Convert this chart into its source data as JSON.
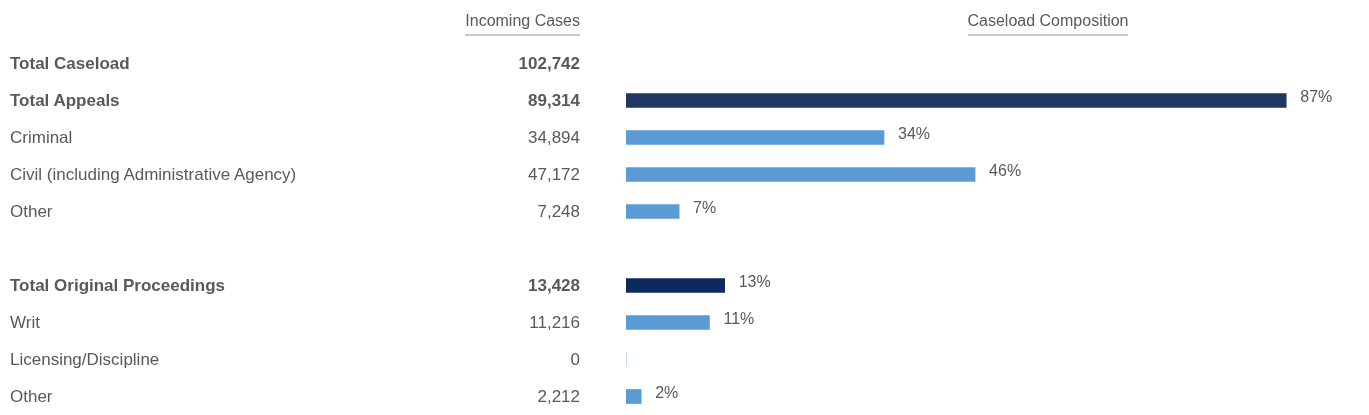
{
  "chart_data": [
    {
      "type": "other",
      "title": "Incoming Cases",
      "values": [
        102742,
        89314,
        34894,
        47172,
        7248,
        null,
        13428,
        11216,
        0,
        2212
      ],
      "value_labels": [
        "102,742",
        "89,314",
        "34,894",
        "47,172",
        "7,248",
        null,
        "13,428",
        "11,216",
        "0",
        "2,212"
      ]
    },
    {
      "type": "bar",
      "orientation": "horizontal",
      "title": "Caseload Composition",
      "categories": [
        "Total Caseload",
        "Total Appeals",
        "Criminal",
        "Civil (including Administrative Agency)",
        "Other",
        null,
        "Total Original Proceedings",
        "Writ",
        "Licensing/Discipline",
        "Other"
      ],
      "values": [
        null,
        87,
        34,
        46,
        7,
        null,
        13,
        11,
        0,
        2
      ],
      "colors": [
        "#1f3864",
        "#1f3864",
        "#5b9bd5",
        "#5b9bd5",
        "#5b9bd5",
        "#5b9bd5",
        "#0d2a5e",
        "#5b9bd5",
        "#5b9bd5",
        "#5b9bd5"
      ],
      "value_labels": [
        null,
        "87%",
        "34%",
        "46%",
        "7%",
        null,
        "13%",
        "11%",
        null,
        "2%"
      ],
      "tick_labels": "y"
    }
  ]
}
